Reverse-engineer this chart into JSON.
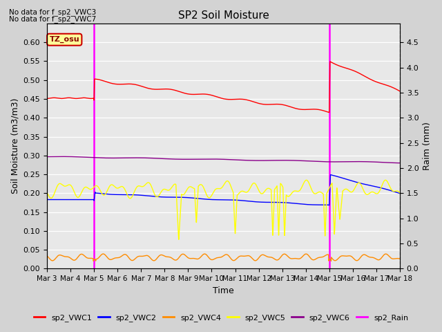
{
  "title": "SP2 Soil Moisture",
  "ylabel_left": "Soil Moisture (m3/m3)",
  "ylabel_right": "Raim (mm)",
  "xlabel": "Time",
  "note1": "No data for f_sp2_VWC3",
  "note2": "No data for f_sp2_VWC7",
  "tz_label": "TZ_osu",
  "ylim_left": [
    0.0,
    0.65
  ],
  "ylim_right": [
    0.0,
    4.875
  ],
  "yticks_left": [
    0.0,
    0.05,
    0.1,
    0.15,
    0.2,
    0.25,
    0.3,
    0.35,
    0.4,
    0.45,
    0.5,
    0.55,
    0.6
  ],
  "yticks_right": [
    0.0,
    0.5,
    1.0,
    1.5,
    2.0,
    2.5,
    3.0,
    3.5,
    4.0,
    4.5
  ],
  "colors": {
    "sp2_VWC1": "#ff0000",
    "sp2_VWC2": "#0000ff",
    "sp2_VWC4": "#ff8c00",
    "sp2_VWC5": "#ffff00",
    "sp2_VWC6": "#8b008b",
    "sp2_Rain": "#ff00ff"
  },
  "bg_color": "#d3d3d3",
  "plot_bg": "#e8e8e8",
  "x_start": 3,
  "x_end": 18,
  "x_ticks": [
    3,
    4,
    5,
    6,
    7,
    8,
    9,
    10,
    11,
    12,
    13,
    14,
    15,
    16,
    17,
    18
  ],
  "x_tick_labels": [
    "Mar 3",
    "Mar 4",
    "Mar 5",
    "Mar 6",
    "Mar 7",
    "Mar 8",
    "Mar 9",
    "Mar 10",
    "Mar 11",
    "Mar 12",
    "Mar 13",
    "Mar 14",
    "Mar 15",
    "Mar 16",
    "Mar 17",
    "Mar 18"
  ]
}
